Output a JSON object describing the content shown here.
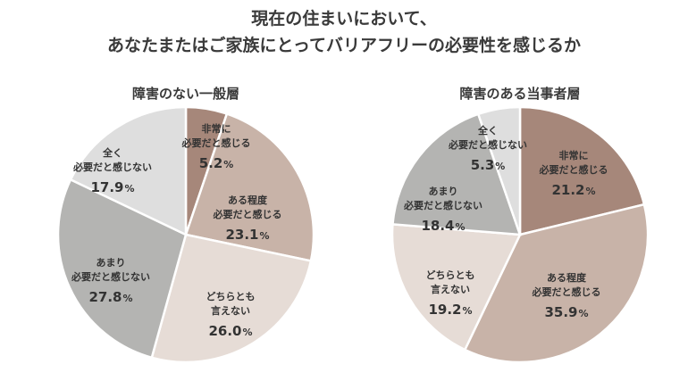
{
  "title": {
    "line1": "現在の住まいにおいて、",
    "line2": "あなたまたはご家族にとってバリアフリーの必要性を感じるか"
  },
  "colors": {
    "very_necessary": "#a6877a",
    "somewhat_necessary": "#c8b3a8",
    "neither": "#e6dcd6",
    "not_much": "#b4b4b2",
    "not_at_all": "#dedede",
    "separator": "#ffffff"
  },
  "chart_data": [
    {
      "type": "pie",
      "title": "障害のない一般層",
      "unit": "%",
      "slices": [
        {
          "label": "非常に\n必要だと感じる",
          "value": 5.2
        },
        {
          "label": "ある程度\n必要だと感じる",
          "value": 23.1
        },
        {
          "label": "どちらとも\n言えない",
          "value": 26.0
        },
        {
          "label": "あまり\n必要だと感じない",
          "value": 27.8
        },
        {
          "label": "全く\n必要だと感じない",
          "value": 17.9
        }
      ]
    },
    {
      "type": "pie",
      "title": "障害のある当事者層",
      "unit": "%",
      "slices": [
        {
          "label": "非常に\n必要だと感じる",
          "value": 21.2
        },
        {
          "label": "ある程度\n必要だと感じる",
          "value": 35.9
        },
        {
          "label": "どちらとも\n言えない",
          "value": 19.2
        },
        {
          "label": "あまり\n必要だと感じない",
          "value": 18.4
        },
        {
          "label": "全く\n必要だと感じない",
          "value": 5.3
        }
      ]
    }
  ]
}
